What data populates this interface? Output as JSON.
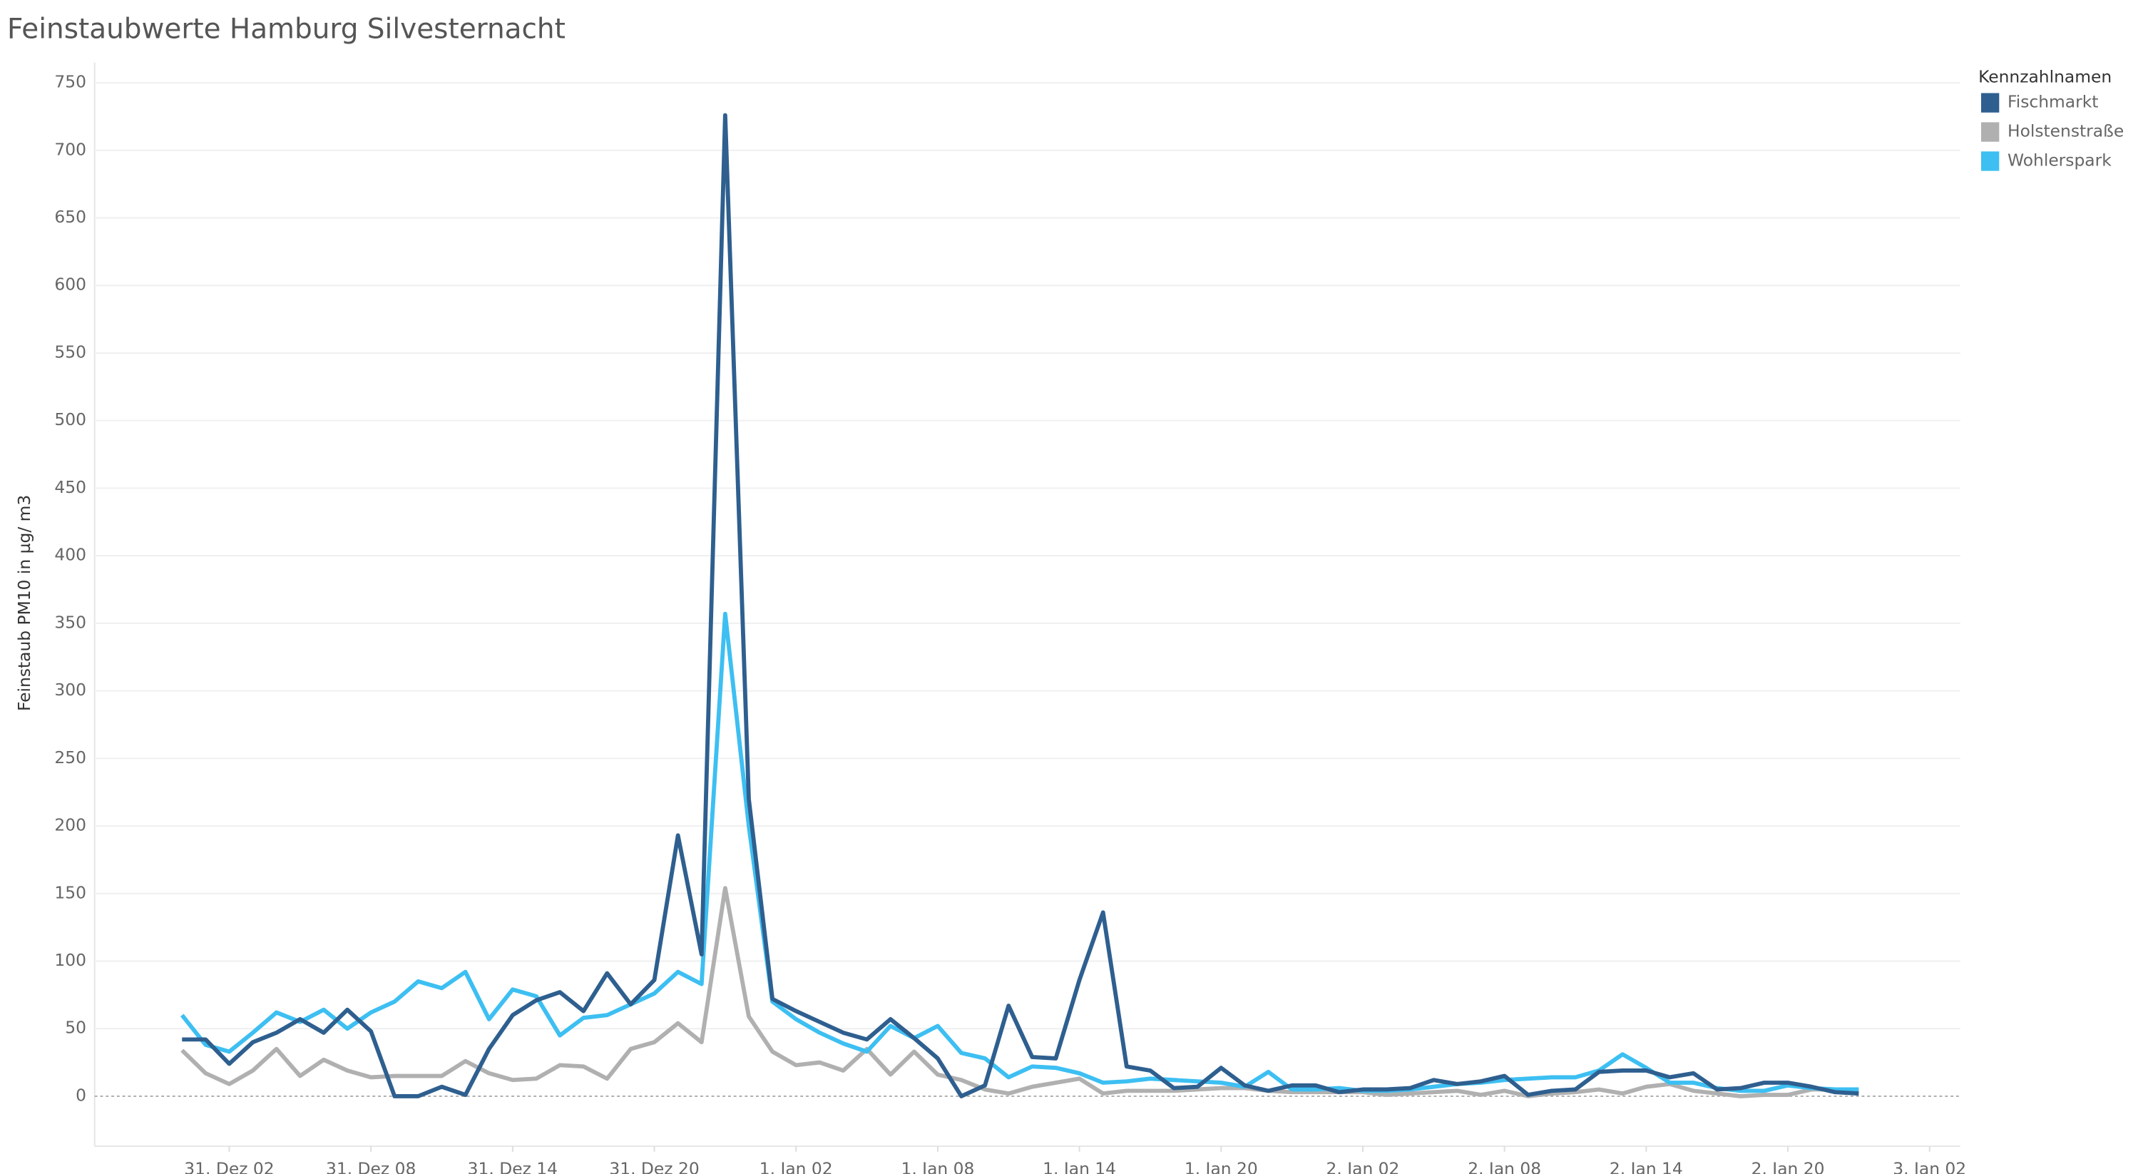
{
  "chart_data": {
    "type": "line",
    "title": "Feinstaubwerte Hamburg Silvesternacht",
    "y_label": "Feinstaub PM10 in µg/ m3",
    "legend_title": "Kennzahlnamen",
    "legend_position": "right",
    "grid": true,
    "x": [
      0,
      1,
      2,
      3,
      4,
      5,
      6,
      7,
      8,
      9,
      10,
      11,
      12,
      13,
      14,
      15,
      16,
      17,
      18,
      19,
      20,
      21,
      22,
      23,
      24,
      25,
      26,
      27,
      28,
      29,
      30,
      31,
      32,
      33,
      34,
      35,
      36,
      37,
      38,
      39,
      40,
      41,
      42,
      43,
      44,
      45,
      46,
      47,
      48,
      49,
      50,
      51,
      52,
      53,
      54,
      55,
      56,
      57,
      58,
      59,
      60,
      61,
      62,
      63,
      64,
      65,
      66,
      67,
      68,
      69,
      70,
      71
    ],
    "xlim": [
      -3.7,
      75.3
    ],
    "xticks": [
      {
        "value": 2,
        "label": "31. Dez 02"
      },
      {
        "value": 8,
        "label": "31. Dez 08"
      },
      {
        "value": 14,
        "label": "31. Dez 14"
      },
      {
        "value": 20,
        "label": "31. Dez 20"
      },
      {
        "value": 26,
        "label": "1. Jan 02"
      },
      {
        "value": 32,
        "label": "1. Jan 08"
      },
      {
        "value": 38,
        "label": "1. Jan 14"
      },
      {
        "value": 44,
        "label": "1. Jan 20"
      },
      {
        "value": 50,
        "label": "2. Jan 02"
      },
      {
        "value": 56,
        "label": "2. Jan 08"
      },
      {
        "value": 62,
        "label": "2. Jan 14"
      },
      {
        "value": 68,
        "label": "2. Jan 20"
      },
      {
        "value": 74,
        "label": "3. Jan 02"
      }
    ],
    "ylim": [
      -37,
      765
    ],
    "yticks": [
      0,
      50,
      100,
      150,
      200,
      250,
      300,
      350,
      400,
      450,
      500,
      550,
      600,
      650,
      700,
      750
    ],
    "series": [
      {
        "name": "Fischmarkt",
        "color": "#2e5f8f",
        "values": [
          42,
          42,
          24,
          40,
          47,
          57,
          47,
          64,
          48,
          0,
          0,
          7,
          1,
          35,
          60,
          71,
          77,
          63,
          91,
          68,
          86,
          193,
          105,
          726,
          220,
          72,
          63,
          55,
          47,
          42,
          57,
          43,
          28,
          0,
          8,
          67,
          29,
          28,
          86,
          136,
          22,
          19,
          6,
          7,
          21,
          8,
          4,
          8,
          8,
          3,
          5,
          5,
          6,
          12,
          9,
          11,
          15,
          1,
          4,
          5,
          18,
          19,
          19,
          14,
          17,
          5,
          6,
          10,
          10,
          7,
          3,
          2
        ]
      },
      {
        "name": "Holstenstraße",
        "color": "#b0b0b0",
        "values": [
          34,
          17,
          9,
          19,
          35,
          15,
          27,
          19,
          14,
          15,
          15,
          15,
          26,
          17,
          12,
          13,
          23,
          22,
          13,
          35,
          40,
          54,
          40,
          154,
          59,
          33,
          23,
          25,
          19,
          35,
          16,
          33,
          16,
          12,
          5,
          2,
          7,
          10,
          13,
          2,
          4,
          4,
          4,
          5,
          6,
          6,
          4,
          3,
          3,
          3,
          3,
          1,
          2,
          3,
          4,
          1,
          4,
          0,
          2,
          3,
          5,
          2,
          7,
          9,
          4,
          2,
          0,
          1,
          1,
          5,
          5,
          4
        ]
      },
      {
        "name": "Wohlerspark",
        "color": "#3dbff2",
        "values": [
          60,
          38,
          33,
          47,
          62,
          55,
          64,
          50,
          62,
          70,
          85,
          80,
          92,
          57,
          79,
          74,
          45,
          58,
          60,
          68,
          76,
          92,
          83,
          357,
          200,
          70,
          57,
          47,
          39,
          33,
          52,
          43,
          52,
          32,
          28,
          14,
          22,
          21,
          17,
          10,
          11,
          13,
          12,
          11,
          10,
          7,
          18,
          5,
          5,
          6,
          4,
          4,
          5,
          7,
          9,
          10,
          12,
          13,
          14,
          14,
          19,
          31,
          21,
          10,
          10,
          6,
          4,
          4,
          8,
          6,
          5,
          5
        ]
      }
    ]
  }
}
